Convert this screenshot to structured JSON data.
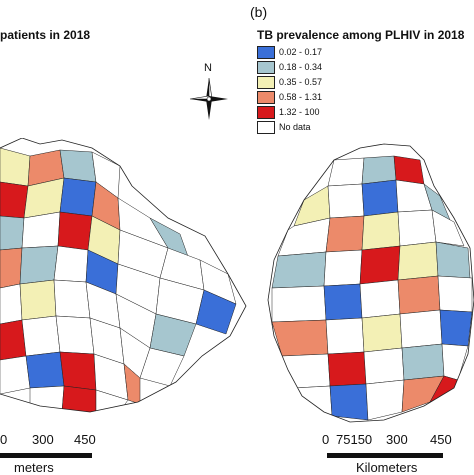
{
  "left_panel": {
    "title_fragment": "patients in 2018",
    "scale_ticks": [
      "0",
      "300",
      "450"
    ],
    "scale_unit": "meters"
  },
  "right_panel": {
    "panel_letter": "(b)",
    "legend": {
      "title": "TB prevalence among PLHIV in 2018",
      "classes": [
        {
          "label": "0.02 - 0.17",
          "color": "#3a6fd8"
        },
        {
          "label": "0.18 - 0.34",
          "color": "#a6c6cf"
        },
        {
          "label": "0.35 - 0.57",
          "color": "#f3f0b5"
        },
        {
          "label": "0.58 - 1.31",
          "color": "#ec8a6a"
        },
        {
          "label": "1.32 - 100",
          "color": "#d7191c"
        },
        {
          "label": "No data",
          "color": "#ffffff"
        }
      ]
    },
    "north_arrow": "N",
    "scale_ticks": [
      "0",
      "75150",
      "300",
      "450"
    ],
    "scale_unit": "Kilometers"
  }
}
